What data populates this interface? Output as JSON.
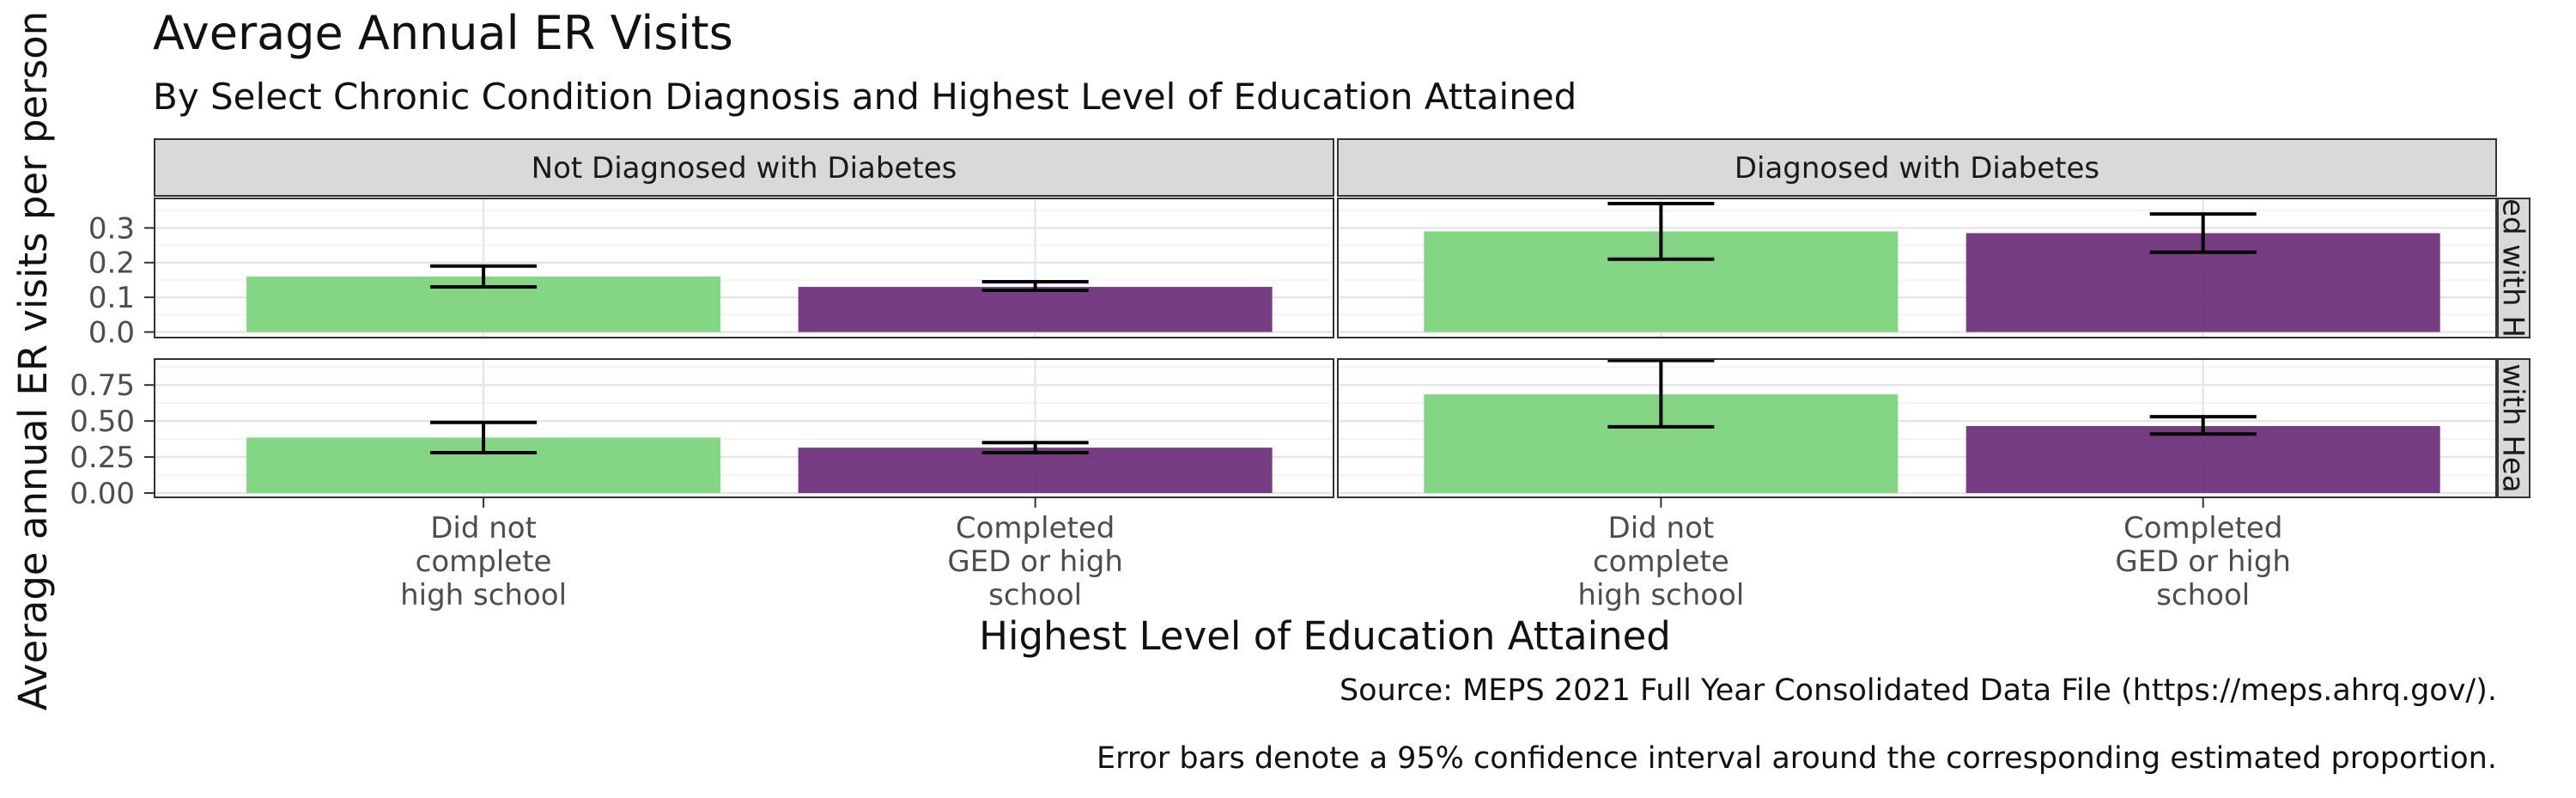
{
  "chart_data": {
    "type": "bar",
    "title": "Average Annual ER Visits",
    "subtitle": "By Select Chronic Condition Diagnosis and Highest Level of Education Attained",
    "xlabel": "Highest Level of Education Attained",
    "ylabel": "Average annual ER visits per person",
    "categories": [
      "Did not complete high school",
      "Completed GED or high school"
    ],
    "category_label_lines": [
      [
        "Did not",
        "complete",
        "high school"
      ],
      [
        "Completed",
        "GED or high",
        "school"
      ]
    ],
    "column_facets": [
      "Not Diagnosed with Diabetes",
      "Diagnosed with Diabetes"
    ],
    "row_facet_visible_text": [
      "ed with H",
      "with Hea"
    ],
    "bar_colors": [
      "#7dd47d",
      "#6a2d78"
    ],
    "grid": true,
    "panels": [
      {
        "row": 0,
        "col": 0,
        "values": [
          0.16,
          0.13
        ],
        "ci": [
          [
            0.13,
            0.19
          ],
          [
            0.12,
            0.145
          ]
        ]
      },
      {
        "row": 0,
        "col": 1,
        "values": [
          0.29,
          0.285
        ],
        "ci": [
          [
            0.21,
            0.37
          ],
          [
            0.23,
            0.34
          ]
        ]
      },
      {
        "row": 1,
        "col": 0,
        "values": [
          0.385,
          0.315
        ],
        "ci": [
          [
            0.28,
            0.49
          ],
          [
            0.28,
            0.35
          ]
        ]
      },
      {
        "row": 1,
        "col": 1,
        "values": [
          0.685,
          0.465
        ],
        "ci": [
          [
            0.46,
            0.92
          ],
          [
            0.41,
            0.53
          ]
        ]
      }
    ],
    "row_axes": [
      {
        "ylim": [
          -0.016,
          0.385
        ],
        "ticks": [
          0,
          0.1,
          0.2,
          0.3
        ],
        "tick_labels": [
          "0.0",
          "0.1",
          "0.2",
          "0.3"
        ]
      },
      {
        "ylim": [
          -0.03,
          0.93
        ],
        "ticks": [
          0,
          0.25,
          0.5,
          0.75
        ],
        "tick_labels": [
          "0.00",
          "0.25",
          "0.50",
          "0.75"
        ]
      }
    ]
  },
  "captions": [
    "Source: MEPS 2021 Full Year Consolidated Data File (https://meps.ahrq.gov/).",
    "Error bars denote a 95% confidence interval around the corresponding estimated proportion."
  ]
}
